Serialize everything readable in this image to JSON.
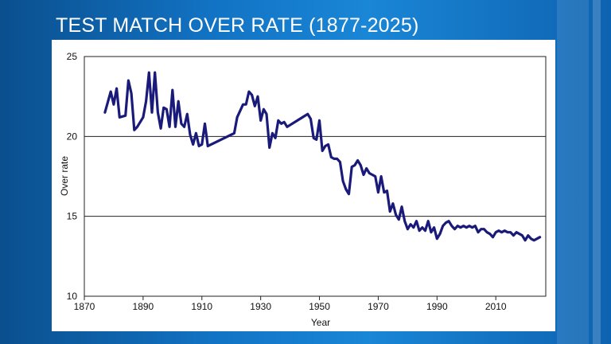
{
  "page": {
    "title": "TEST MATCH OVER RATE (1877-2025)"
  },
  "colors": {
    "line": "#1a1a7a",
    "background_accent": "#1273c4"
  },
  "chart_data": {
    "type": "line",
    "title": "",
    "xlabel": "Year",
    "ylabel": "Over rate",
    "xlim": [
      1870,
      2027
    ],
    "ylim": [
      10,
      25
    ],
    "xticks": [
      1870,
      1890,
      1910,
      1930,
      1950,
      1970,
      1990,
      2010
    ],
    "yticks": [
      10,
      15,
      20,
      25
    ],
    "grid": "horizontal",
    "series": [
      {
        "x": [
          1877,
          1879,
          1880,
          1881,
          1882,
          1884,
          1885,
          1886,
          1887,
          1888,
          1890,
          1891,
          1892,
          1893,
          1894,
          1895,
          1896,
          1897,
          1898,
          1899,
          1900,
          1901,
          1902,
          1903,
          1904,
          1905,
          1906,
          1907,
          1908,
          1909,
          1910,
          1911,
          1912,
          1921,
          1922,
          1924,
          1925,
          1926,
          1927,
          1928,
          1929,
          1930,
          1931,
          1932,
          1933,
          1934,
          1935,
          1936,
          1937,
          1938,
          1939,
          1946,
          1947,
          1948,
          1949,
          1950,
          1951,
          1952,
          1953,
          1954,
          1955,
          1956,
          1957,
          1958,
          1959,
          1960,
          1961,
          1962,
          1963,
          1964,
          1965,
          1966,
          1967,
          1968,
          1969,
          1970,
          1971,
          1972,
          1973,
          1974,
          1975,
          1976,
          1977,
          1978,
          1979,
          1980,
          1981,
          1982,
          1983,
          1984,
          1985,
          1986,
          1987,
          1988,
          1989,
          1990,
          1991,
          1992,
          1993,
          1994,
          1995,
          1996,
          1997,
          1998,
          1999,
          2000,
          2001,
          2002,
          2003,
          2004,
          2005,
          2006,
          2007,
          2008,
          2009,
          2010,
          2011,
          2012,
          2013,
          2014,
          2015,
          2016,
          2017,
          2018,
          2019,
          2020,
          2021,
          2022,
          2023,
          2024,
          2025
        ],
        "y": [
          21.5,
          22.8,
          22.0,
          23.0,
          21.2,
          21.3,
          23.5,
          22.7,
          20.4,
          20.6,
          21.2,
          22.2,
          24.0,
          21.5,
          24.0,
          21.5,
          20.5,
          21.8,
          21.7,
          20.6,
          22.9,
          20.6,
          22.2,
          20.8,
          20.6,
          21.4,
          20.1,
          19.5,
          20.2,
          19.4,
          19.5,
          20.8,
          19.4,
          20.2,
          21.2,
          22.0,
          22.0,
          22.8,
          22.6,
          21.9,
          22.5,
          21.0,
          21.7,
          21.4,
          19.3,
          20.2,
          19.9,
          21.0,
          20.8,
          20.9,
          20.6,
          21.4,
          21.1,
          19.9,
          19.8,
          21.0,
          19.1,
          19.4,
          19.5,
          18.7,
          18.6,
          18.6,
          18.4,
          17.2,
          16.7,
          16.4,
          18.1,
          18.2,
          18.5,
          18.2,
          17.6,
          18.0,
          17.7,
          17.6,
          17.5,
          16.5,
          17.5,
          16.5,
          16.6,
          15.3,
          15.8,
          15.1,
          14.8,
          15.6,
          14.7,
          14.2,
          14.5,
          14.3,
          14.7,
          14.1,
          14.3,
          14.1,
          14.7,
          14.0,
          14.3,
          13.6,
          13.9,
          14.4,
          14.6,
          14.7,
          14.4,
          14.2,
          14.4,
          14.3,
          14.4,
          14.3,
          14.4,
          14.3,
          14.4,
          14.0,
          14.2,
          14.2,
          14.0,
          13.9,
          13.7,
          14.0,
          14.1,
          14.0,
          14.1,
          14.0,
          14.0,
          13.8,
          14.0,
          13.9,
          13.8,
          13.5,
          13.8,
          13.6,
          13.5,
          13.6,
          13.7
        ]
      }
    ]
  }
}
